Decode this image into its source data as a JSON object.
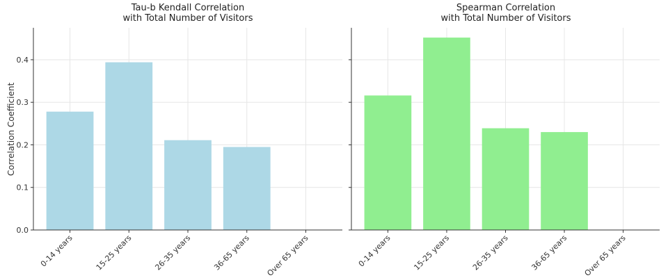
{
  "chart_data": [
    {
      "type": "bar",
      "title": "Tau-b Kendall Correlation\nwith Total Number of Visitors",
      "y_label": "Correlation Coefficient",
      "categories": [
        "0-14 years",
        "15-25 years",
        "26-35 years",
        "36-65 years",
        "Over 65 years"
      ],
      "values": [
        0.278,
        0.394,
        0.211,
        0.195,
        null
      ],
      "color": "#add8e6",
      "ylim": [
        0,
        0.475
      ],
      "yticks": [
        {
          "value": 0,
          "label": "0.0"
        },
        0.1,
        0.2,
        0.3,
        0.4
      ],
      "grid": true
    },
    {
      "type": "bar",
      "title": "Spearman Correlation\nwith Total Number of Visitors",
      "categories": [
        "0-14 years",
        "15-25 years",
        "26-35 years",
        "36-65 years",
        "Over 65 years"
      ],
      "values": [
        0.316,
        0.452,
        0.239,
        0.23,
        null
      ],
      "color": "#90ee90",
      "ylim": [
        0,
        0.475
      ],
      "grid": true
    }
  ]
}
